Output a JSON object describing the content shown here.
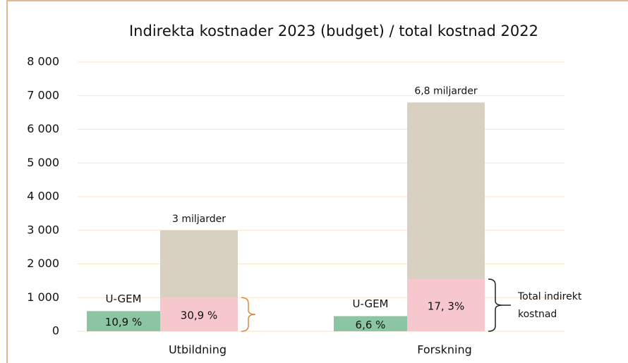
{
  "chart_data": {
    "type": "bar",
    "title": "Indirekta kostnader 2023 (budget) / total kostnad 2022",
    "categories": [
      "Utbildning",
      "Forskning"
    ],
    "series": [
      {
        "name": "U-GEM",
        "color": "#8cc5a3",
        "values": [
          600,
          450
        ],
        "notes": [
          "10,9 %",
          "6,6 %"
        ]
      },
      {
        "color": "#f6c7cc",
        "values": [
          1000,
          1550
        ],
        "notes": [
          "30,9 %",
          "17, 3%"
        ]
      },
      {
        "color": "#d8d0c1",
        "values": [
          2000,
          5250
        ],
        "notes": [
          "3 miljarder",
          "6,8 miljarder"
        ]
      }
    ],
    "bracket_label": "Total indirekt kostnad",
    "ylim": [
      0,
      8000
    ],
    "yticks": [
      0,
      {
        "value": 1000,
        "label": "1 000"
      },
      {
        "value": 2000,
        "label": "2 000"
      },
      {
        "value": 3000,
        "label": "3 000"
      },
      {
        "value": 4000,
        "label": "4 000"
      },
      {
        "value": 5000,
        "label": "5 000"
      },
      {
        "value": 6000,
        "label": "6 000"
      },
      {
        "value": 7000,
        "label": "7 000"
      },
      {
        "value": 8000,
        "label": "8 000"
      }
    ],
    "grid": true
  }
}
